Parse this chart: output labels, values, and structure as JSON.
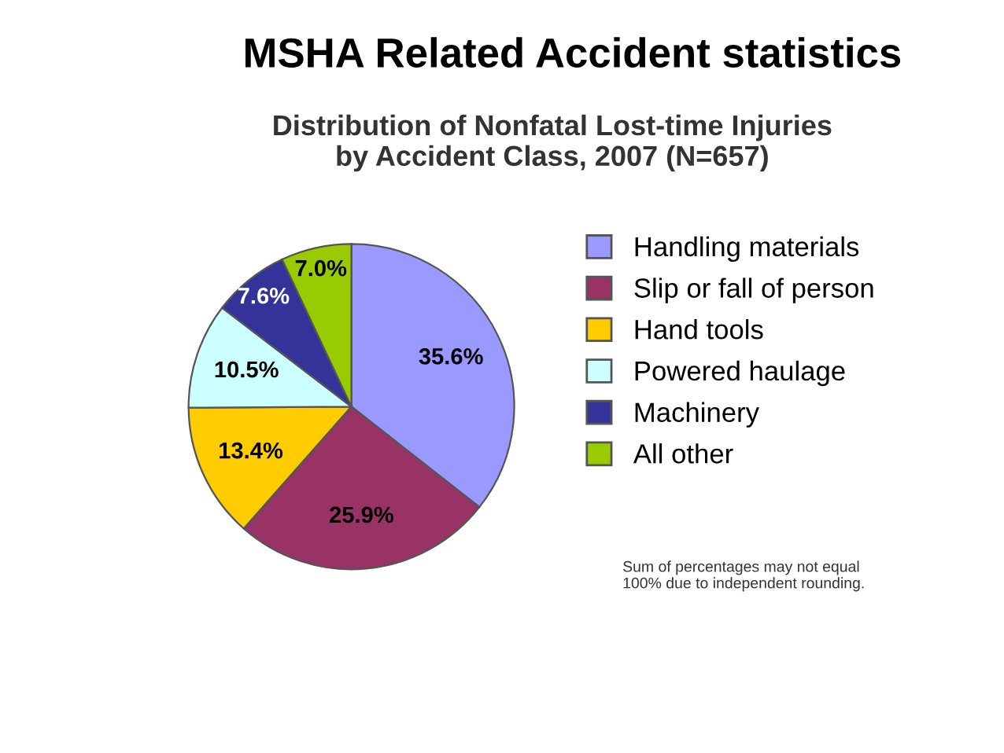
{
  "chart_data": {
    "type": "pie",
    "title": "MSHA Related Accident statistics",
    "subtitle": "Distribution of Nonfatal Lost-time Injuries\nby Accident Class, 2007 (N=657)",
    "categories": [
      "Handling materials",
      "Slip or fall of person",
      "Hand tools",
      "Powered haulage",
      "Machinery",
      "All other"
    ],
    "values": [
      35.6,
      25.9,
      13.4,
      10.5,
      7.6,
      7.0
    ],
    "value_labels": [
      "35.6%",
      "25.9%",
      "13.4%",
      "10.5%",
      "7.6%",
      "7.0%"
    ],
    "colors": [
      "#9999ff",
      "#993366",
      "#ffcc00",
      "#ccffff",
      "#333399",
      "#99cc00"
    ],
    "legend": "right",
    "annotations": [
      "Sum of percentages may not equal\n100% due to independent rounding."
    ]
  }
}
